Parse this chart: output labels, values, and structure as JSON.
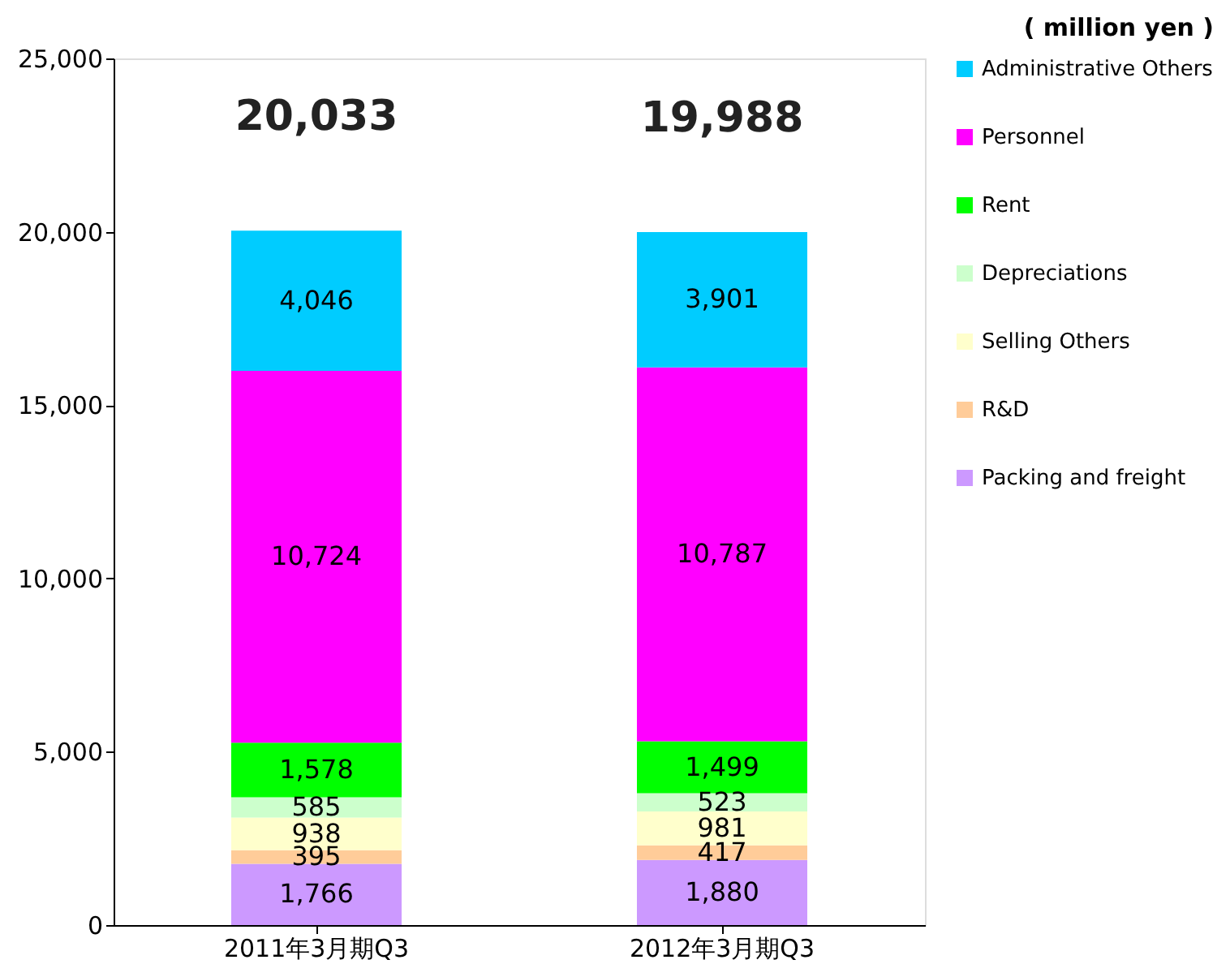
{
  "chart_data": {
    "type": "bar",
    "stacked": true,
    "grid": false,
    "legend": "right",
    "categories": [
      "2011年3月期Q3",
      "2012年3月期Q3"
    ],
    "series": [
      {
        "name": "Packing and freight",
        "color": "#cc99ff",
        "values": [
          1766,
          1880
        ],
        "value_labels": [
          "1,766",
          "1,880"
        ]
      },
      {
        "name": "R&D",
        "color": "#ffcc99",
        "values": [
          395,
          417
        ],
        "value_labels": [
          "395",
          "417"
        ]
      },
      {
        "name": "Selling Others",
        "color": "#ffffcc",
        "values": [
          938,
          981
        ],
        "value_labels": [
          "938",
          "981"
        ]
      },
      {
        "name": "Depreciations",
        "color": "#ccffcc",
        "values": [
          585,
          523
        ],
        "value_labels": [
          "585",
          "523"
        ]
      },
      {
        "name": "Rent",
        "color": "#00ff00",
        "values": [
          1578,
          1499
        ],
        "value_labels": [
          "1,578",
          "1,499"
        ]
      },
      {
        "name": "Personnel",
        "color": "#ff00ff",
        "values": [
          10724,
          10787
        ],
        "value_labels": [
          "10,724",
          "10,787"
        ]
      },
      {
        "name": "Administrative Others",
        "color": "#00ccff",
        "values": [
          4046,
          3901
        ],
        "value_labels": [
          "4,046",
          "3,901"
        ]
      }
    ],
    "totals": [
      "20,033",
      "19,988"
    ],
    "ylim": [
      0,
      25000
    ],
    "yticks": [
      0,
      {
        "value": 5000,
        "label": "5,000"
      },
      {
        "value": 10000,
        "label": "10,000"
      },
      {
        "value": 15000,
        "label": "15,000"
      },
      {
        "value": 20000,
        "label": "20,000"
      },
      {
        "value": 25000,
        "label": "25,000"
      }
    ],
    "annotations": [
      "( million yen )"
    ]
  }
}
